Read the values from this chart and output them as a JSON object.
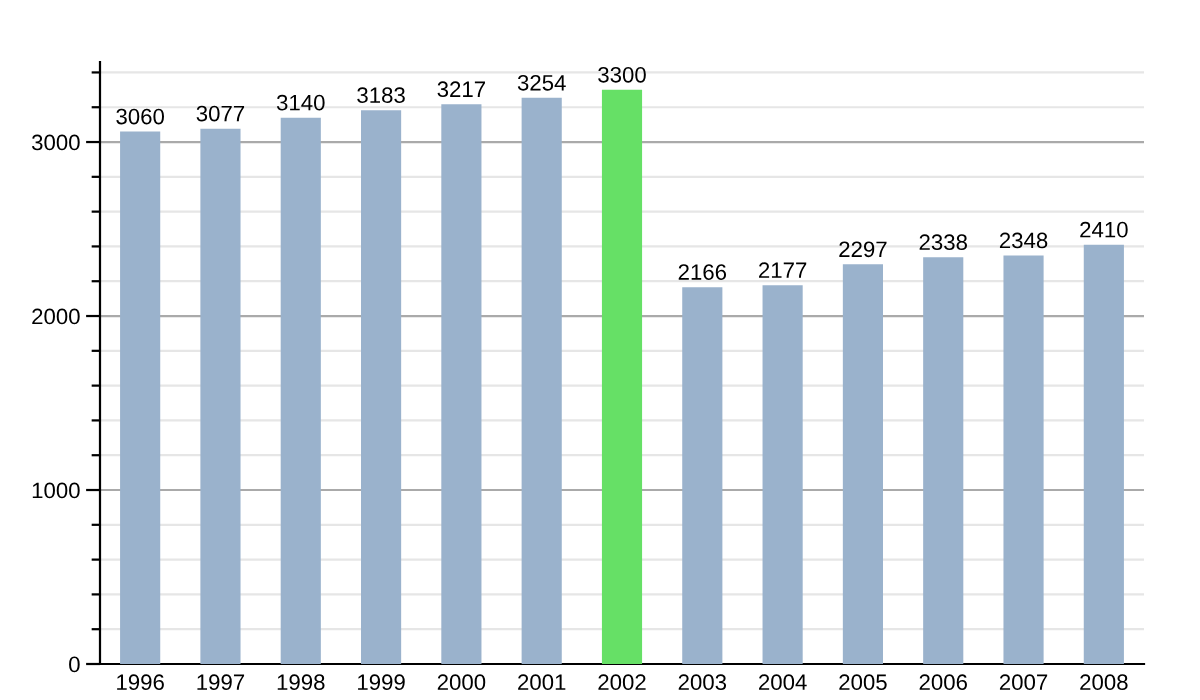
{
  "chart_data": {
    "type": "bar",
    "categories": [
      "1996",
      "1997",
      "1998",
      "1999",
      "2000",
      "2001",
      "2002",
      "2003",
      "2004",
      "2005",
      "2006",
      "2007",
      "2008"
    ],
    "values": [
      3060,
      3077,
      3140,
      3183,
      3217,
      3254,
      3300,
      2166,
      2177,
      2297,
      2338,
      2348,
      2410
    ],
    "colors": [
      "#9ab2cc",
      "#9ab2cc",
      "#9ab2cc",
      "#9ab2cc",
      "#9ab2cc",
      "#9ab2cc",
      "#66e066",
      "#9ab2cc",
      "#9ab2cc",
      "#9ab2cc",
      "#9ab2cc",
      "#9ab2cc",
      "#9ab2cc"
    ],
    "data_labels": true,
    "ylim": [
      0,
      3460
    ],
    "yticks": [
      0,
      {
        "value": 200,
        "label": null
      },
      {
        "value": 400,
        "label": null
      },
      {
        "value": 600,
        "label": null
      },
      {
        "value": 800,
        "label": null
      },
      1000,
      {
        "value": 1200,
        "label": null
      },
      {
        "value": 1400,
        "label": null
      },
      {
        "value": 1600,
        "label": null
      },
      {
        "value": 1800,
        "label": null
      },
      2000,
      {
        "value": 2200,
        "label": null
      },
      {
        "value": 2400,
        "label": null
      },
      {
        "value": 2600,
        "label": null
      },
      {
        "value": 2800,
        "label": null
      },
      3000,
      {
        "value": 3200,
        "label": null
      },
      {
        "value": 3400,
        "label": null
      }
    ],
    "grid": "y"
  }
}
